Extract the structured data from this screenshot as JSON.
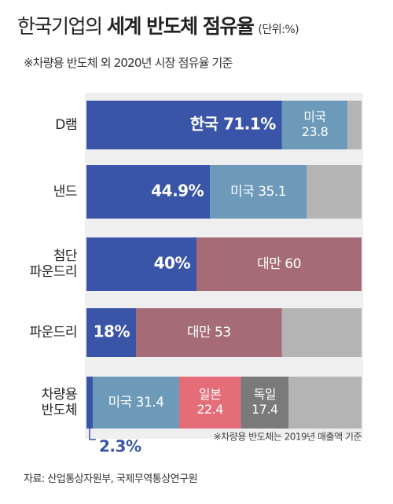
{
  "title": {
    "part1": "한국기업의",
    "part2": "세계 반도체 점유율",
    "unit": "(단위:%)"
  },
  "subtitle": "※차량용 반도체 외 2020년 시장 점유율 기준",
  "footnote": "※차량용 반도체는 2019년 매출액 기준",
  "source": "자료: 산업통상자원부, 국제무역통상연구원",
  "colors": {
    "korea": "#3a55a7",
    "usa": "#6d9ab9",
    "taiwan": "#a56b76",
    "japan": "#e46d78",
    "germany": "#7a7a7a",
    "other": "#b4b4b4"
  },
  "chart_data": {
    "type": "bar",
    "orientation": "horizontal",
    "stacked": true,
    "xlim": [
      0,
      100
    ],
    "categories": [
      "D램",
      "낸드",
      "첨단 파운드리",
      "파운드리",
      "차량용 반도체"
    ],
    "rows": [
      {
        "label_lines": [
          "D램"
        ],
        "segments": [
          {
            "country": "한국",
            "value": 71.1,
            "color": "korea",
            "label_lines": [
              "한국 71.1%"
            ]
          },
          {
            "country": "미국",
            "value": 23.8,
            "color": "usa",
            "label_lines": [
              "미국",
              "23.8"
            ]
          },
          {
            "country": "기타",
            "value": 5.1,
            "color": "other",
            "label_lines": []
          }
        ]
      },
      {
        "label_lines": [
          "낸드"
        ],
        "segments": [
          {
            "country": "한국",
            "value": 44.9,
            "color": "korea",
            "label_lines": [
              "44.9%"
            ]
          },
          {
            "country": "미국",
            "value": 35.1,
            "color": "usa",
            "label_lines": [
              "미국 35.1"
            ]
          },
          {
            "country": "기타",
            "value": 20.0,
            "color": "other",
            "label_lines": []
          }
        ]
      },
      {
        "label_lines": [
          "첨단",
          "파운드리"
        ],
        "segments": [
          {
            "country": "한국",
            "value": 40,
            "color": "korea",
            "label_lines": [
              "40%"
            ]
          },
          {
            "country": "대만",
            "value": 60,
            "color": "taiwan",
            "label_lines": [
              "대만 60"
            ]
          }
        ]
      },
      {
        "label_lines": [
          "파운드리"
        ],
        "segments": [
          {
            "country": "한국",
            "value": 18,
            "color": "korea",
            "label_lines": [
              "18%"
            ]
          },
          {
            "country": "대만",
            "value": 53,
            "color": "taiwan",
            "label_lines": [
              "대만 53"
            ]
          },
          {
            "country": "기타",
            "value": 29,
            "color": "other",
            "label_lines": []
          }
        ]
      },
      {
        "label_lines": [
          "차량용",
          "반도체"
        ],
        "segments": [
          {
            "country": "한국",
            "value": 2.3,
            "color": "korea",
            "label_lines": [],
            "callout": "2.3%"
          },
          {
            "country": "미국",
            "value": 31.4,
            "color": "usa",
            "label_lines": [
              "미국 31.4"
            ]
          },
          {
            "country": "일본",
            "value": 22.4,
            "color": "japan",
            "label_lines": [
              "일본",
              "22.4"
            ]
          },
          {
            "country": "독일",
            "value": 17.4,
            "color": "germany",
            "label_lines": [
              "독일",
              "17.4"
            ]
          },
          {
            "country": "기타",
            "value": 26.5,
            "color": "other",
            "label_lines": []
          }
        ]
      }
    ]
  }
}
